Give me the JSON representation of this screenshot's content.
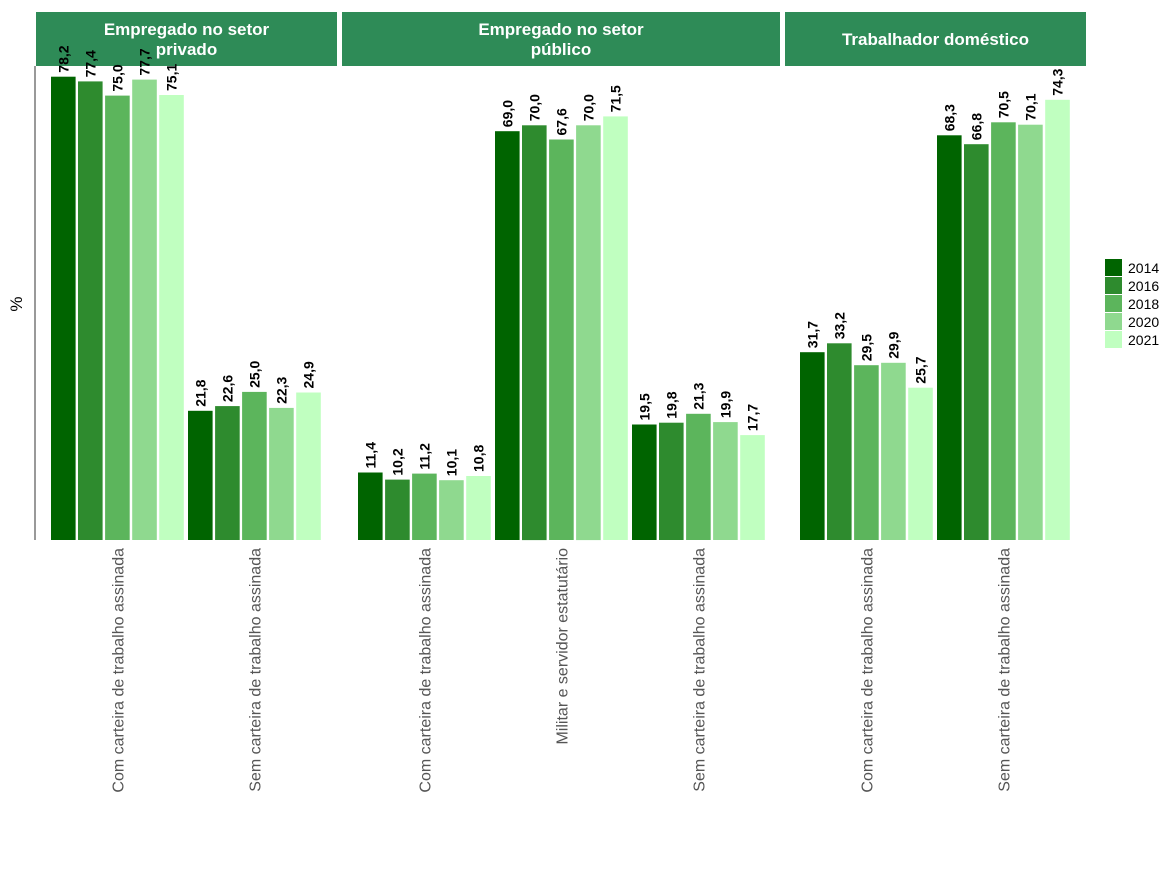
{
  "colors": {
    "strip": "#2e8b57",
    "series": [
      "#006400",
      "#2e8b2e",
      "#5cb55c",
      "#8fd98f",
      "#c0ffc0"
    ]
  },
  "chart_data": {
    "type": "bar",
    "ylabel": "%",
    "ylim": [
      0,
      80
    ],
    "grid": false,
    "legend_position": "right",
    "series_names": [
      "2014",
      "2016",
      "2018",
      "2020",
      "2021"
    ],
    "panels": [
      {
        "title_lines": [
          "Empregado no setor",
          "privado"
        ],
        "categories": [
          "Com carteira de trabalho assinada",
          "Sem carteira de trabalho assinada"
        ],
        "values": [
          [
            78.2,
            77.4,
            75.0,
            77.7,
            75.1
          ],
          [
            21.8,
            22.6,
            25.0,
            22.3,
            24.9
          ]
        ],
        "labels": [
          [
            "78,2",
            "77,4",
            "75,0",
            "77,7",
            "75,1"
          ],
          [
            "21,8",
            "22,6",
            "25,0",
            "22,3",
            "24,9"
          ]
        ]
      },
      {
        "title_lines": [
          "Empregado no setor",
          "público"
        ],
        "categories": [
          "Com carteira de trabalho assinada",
          "Militar e servidor estatutário",
          "Sem carteira de trabalho assinada"
        ],
        "values": [
          [
            11.4,
            10.2,
            11.2,
            10.1,
            10.8
          ],
          [
            69.0,
            70.0,
            67.6,
            70.0,
            71.5
          ],
          [
            19.5,
            19.8,
            21.3,
            19.9,
            17.7
          ]
        ],
        "labels": [
          [
            "11,4",
            "10,2",
            "11,2",
            "10,1",
            "10,8"
          ],
          [
            "69,0",
            "70,0",
            "67,6",
            "70,0",
            "71,5"
          ],
          [
            "19,5",
            "19,8",
            "21,3",
            "19,9",
            "17,7"
          ]
        ]
      },
      {
        "title_lines": [
          "Trabalhador doméstico"
        ],
        "categories": [
          "Com carteira de trabalho assinada",
          "Sem carteira de trabalho assinada"
        ],
        "values": [
          [
            31.7,
            33.2,
            29.5,
            29.9,
            25.7
          ],
          [
            68.3,
            66.8,
            70.5,
            70.1,
            74.3
          ]
        ],
        "labels": [
          [
            "31,7",
            "33,2",
            "29,5",
            "29,9",
            "25,7"
          ],
          [
            "68,3",
            "66,8",
            "70,5",
            "70,1",
            "74,3"
          ]
        ]
      }
    ]
  }
}
